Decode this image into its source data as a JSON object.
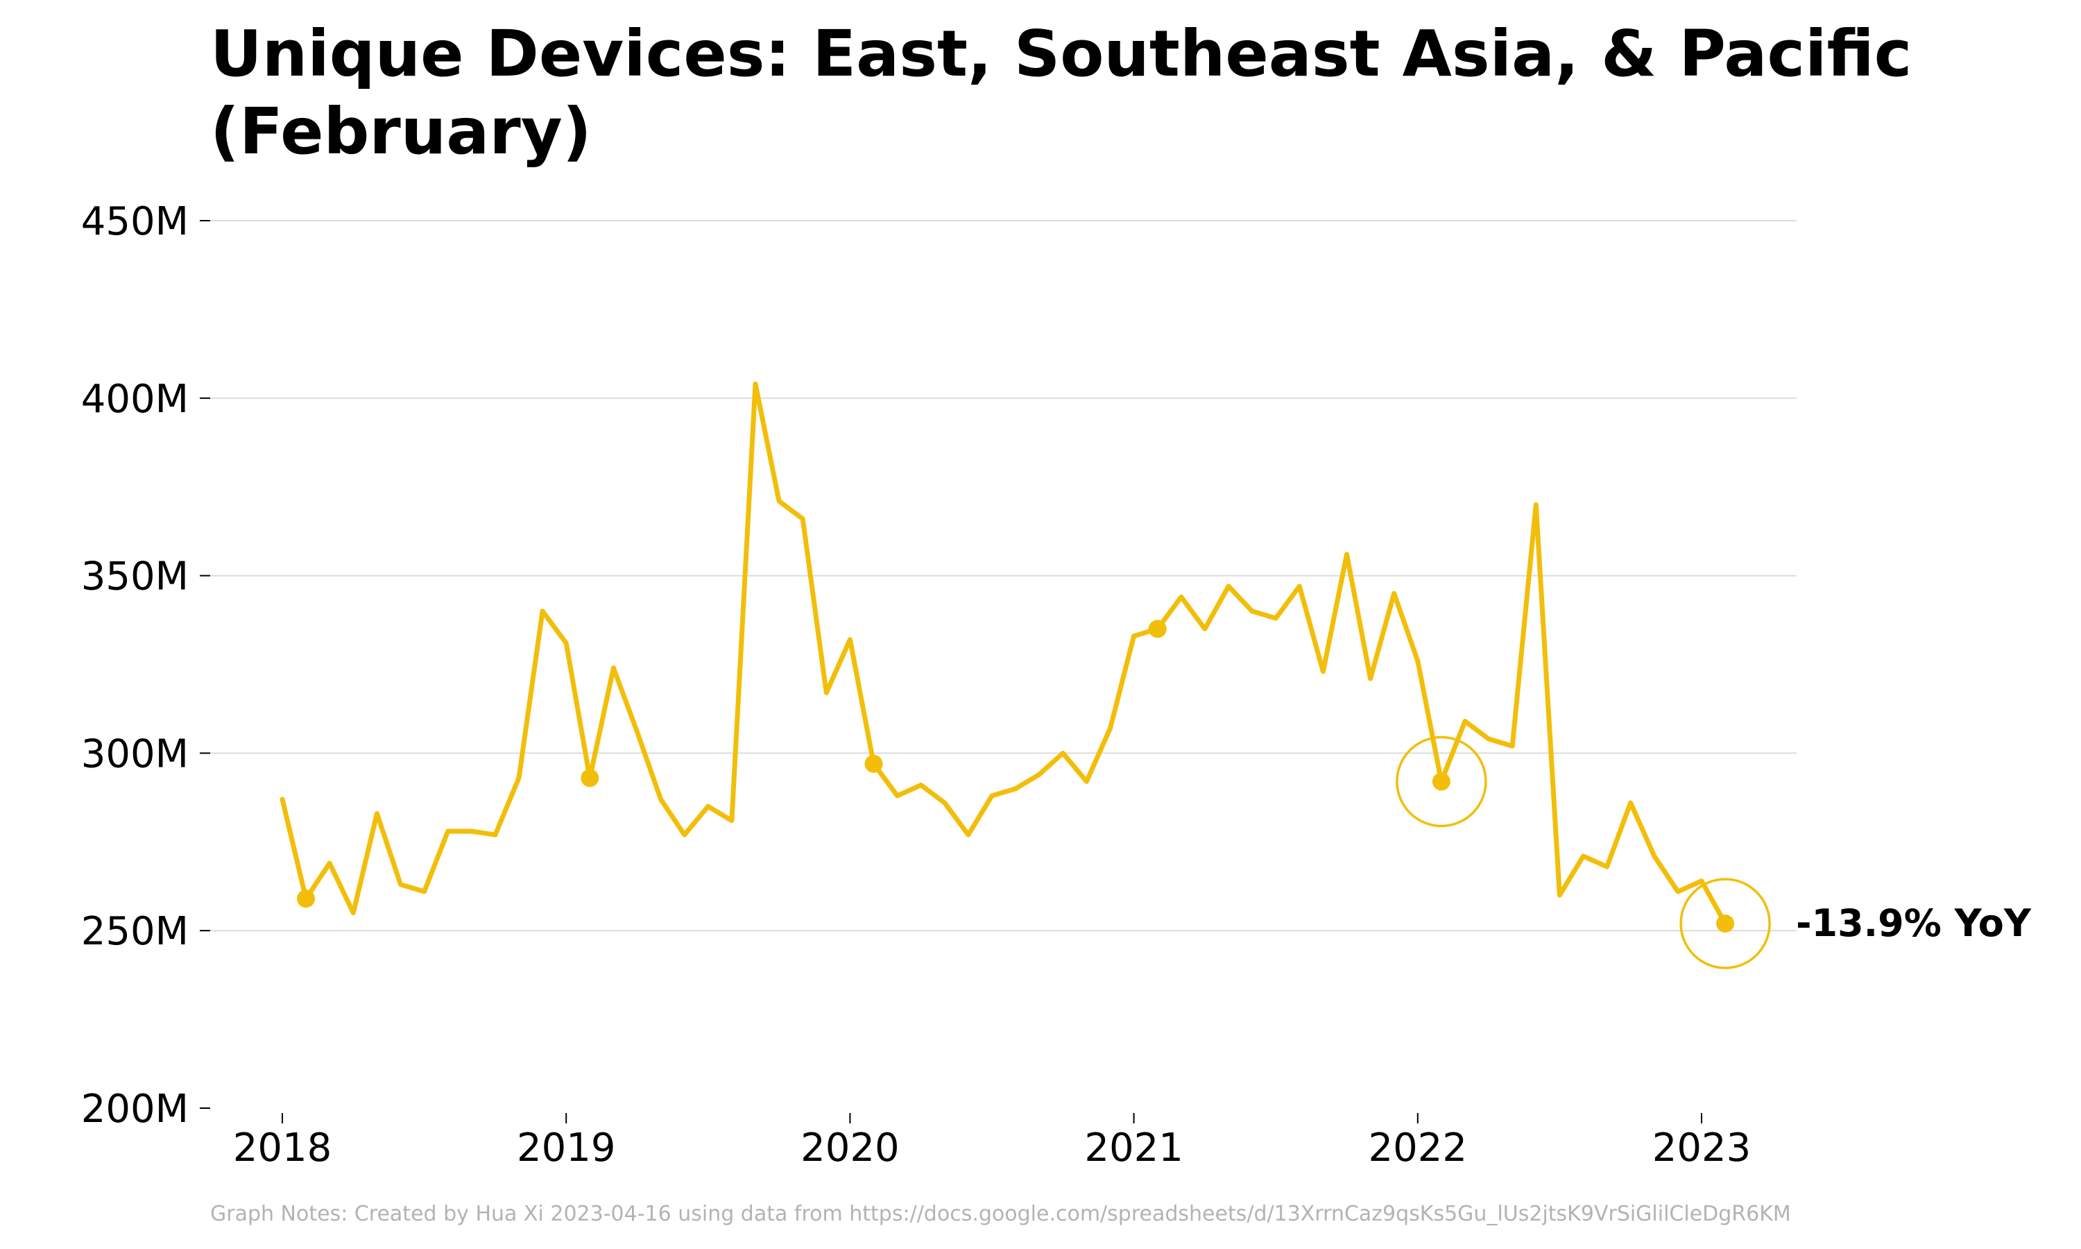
{
  "chart_data": {
    "type": "line",
    "title": "Unique Devices: East, Southeast Asia, & Pacific (February)",
    "xlabel": "",
    "ylabel": "",
    "ylim": [
      200000000,
      450000000
    ],
    "y_ticks": [
      {
        "value": 200000000,
        "label": "200M"
      },
      {
        "value": 250000000,
        "label": "250M"
      },
      {
        "value": 300000000,
        "label": "300M"
      },
      {
        "value": 350000000,
        "label": "350M"
      },
      {
        "value": 400000000,
        "label": "400M"
      },
      {
        "value": 450000000,
        "label": "450M"
      }
    ],
    "x_ticks": [
      {
        "value": "2018-01",
        "label": "2018"
      },
      {
        "value": "2019-01",
        "label": "2019"
      },
      {
        "value": "2020-01",
        "label": "2020"
      },
      {
        "value": "2021-01",
        "label": "2021"
      },
      {
        "value": "2022-01",
        "label": "2022"
      },
      {
        "value": "2023-01",
        "label": "2023"
      }
    ],
    "grid": "horizontal",
    "color": "#f2be0a",
    "series": [
      {
        "x": [
          "2018-01",
          "2018-02",
          "2018-03",
          "2018-04",
          "2018-05",
          "2018-06",
          "2018-07",
          "2018-08",
          "2018-09",
          "2018-10",
          "2018-11",
          "2018-12",
          "2019-01",
          "2019-02",
          "2019-03",
          "2019-04",
          "2019-05",
          "2019-06",
          "2019-07",
          "2019-08",
          "2019-09",
          "2019-10",
          "2019-11",
          "2019-12",
          "2020-01",
          "2020-02",
          "2020-03",
          "2020-04",
          "2020-05",
          "2020-06",
          "2020-07",
          "2020-08",
          "2020-09",
          "2020-10",
          "2020-11",
          "2020-12",
          "2021-01",
          "2021-02",
          "2021-03",
          "2021-04",
          "2021-05",
          "2021-06",
          "2021-07",
          "2021-08",
          "2021-09",
          "2021-10",
          "2021-11",
          "2021-12",
          "2022-01",
          "2022-02",
          "2022-03",
          "2022-04",
          "2022-05",
          "2022-06",
          "2022-07",
          "2022-08",
          "2022-09",
          "2022-10",
          "2022-11",
          "2022-12",
          "2023-01",
          "2023-02"
        ],
        "values": [
          287000000,
          259000000,
          269000000,
          255000000,
          283000000,
          263000000,
          261000000,
          278000000,
          278000000,
          277000000,
          293000000,
          340000000,
          331000000,
          293000000,
          324000000,
          306000000,
          287000000,
          277000000,
          285000000,
          281000000,
          404000000,
          371000000,
          366000000,
          317000000,
          332000000,
          297000000,
          288000000,
          291000000,
          286000000,
          277000000,
          288000000,
          290000000,
          294000000,
          300000000,
          292000000,
          307000000,
          333000000,
          335000000,
          344000000,
          335000000,
          347000000,
          340000000,
          338000000,
          347000000,
          323000000,
          356000000,
          321000000,
          345000000,
          326000000,
          292000000,
          309000000,
          304000000,
          302000000,
          370000000,
          260000000,
          271000000,
          268000000,
          286000000,
          271000000,
          261000000,
          264000000,
          252000000
        ]
      }
    ],
    "markers": [
      {
        "x": "2018-02",
        "y": 259000000
      },
      {
        "x": "2019-02",
        "y": 293000000
      },
      {
        "x": "2020-02",
        "y": 297000000
      },
      {
        "x": "2021-02",
        "y": 335000000
      },
      {
        "x": "2022-02",
        "y": 292000000
      },
      {
        "x": "2023-02",
        "y": 252000000
      }
    ],
    "highlights": [
      {
        "x": "2022-02",
        "y": 292000000
      },
      {
        "x": "2023-02",
        "y": 252000000
      }
    ],
    "annotation": {
      "text": "-13.9% YoY",
      "x": "2023-02",
      "y": 252000000
    }
  },
  "notes": "Graph Notes: Created by Hua Xi 2023-04-16 using data from https://docs.google.com/spreadsheets/d/13XrrnCaz9qsKs5Gu_lUs2jtsK9VrSiGlilCleDgR6KM"
}
